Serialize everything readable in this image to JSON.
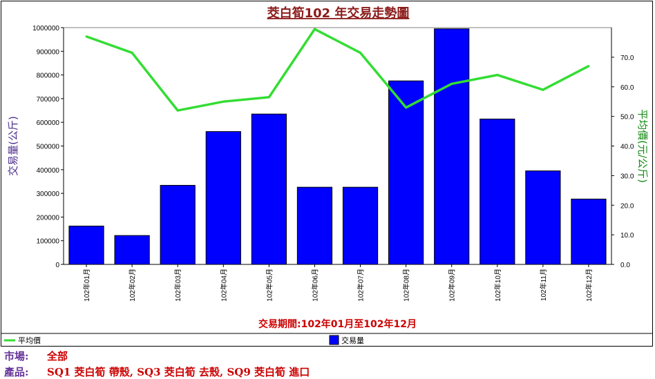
{
  "chart_data": {
    "type": "bar+line",
    "title": "茭白筍102 年交易走勢圖",
    "period_label": "交易期間:102年01月至102年12月",
    "categories": [
      "102年01月",
      "102年02月",
      "102年03月",
      "102年04月",
      "102年05月",
      "102年06月",
      "102年07月",
      "102年08月",
      "102年09月",
      "102年10月",
      "102年11月",
      "102年12月"
    ],
    "series": [
      {
        "name": "交易量",
        "kind": "bar",
        "axis": "left",
        "color": "#0000ff",
        "values": [
          162000,
          122000,
          334000,
          561000,
          635000,
          326000,
          326000,
          775000,
          995000,
          614000,
          395000,
          276000
        ]
      },
      {
        "name": "平均價",
        "kind": "line",
        "axis": "right",
        "color": "#33dd33",
        "values": [
          77.0,
          71.5,
          52.0,
          55.0,
          56.5,
          79.5,
          71.5,
          53.0,
          61.0,
          64.0,
          59.0,
          67.0
        ]
      }
    ],
    "ylabel_left": "交易量(公斤)",
    "ylabel_right": "平均價(元/公斤)",
    "ylim_left": [
      0,
      1000000
    ],
    "ylim_right": [
      0,
      80
    ],
    "yticks_left": [
      "0",
      "100000",
      "200000",
      "300000",
      "400000",
      "500000",
      "600000",
      "700000",
      "800000",
      "900000",
      "1000000"
    ],
    "yticks_right": [
      "0.0",
      "10.0",
      "20.0",
      "30.0",
      "40.0",
      "50.0",
      "60.0",
      "70.0"
    ],
    "legend": [
      {
        "label": "平均價",
        "type": "line"
      },
      {
        "label": "交易量",
        "type": "bar"
      }
    ],
    "legend_position": "bottom",
    "grid": false
  },
  "footer": {
    "market_label": "市場:",
    "market_value": "全部",
    "product_label": "產品:",
    "product_value": "SQ1 茭白筍 帶殼, SQ3 茭白筍 去殼, SQ9 茭白筍 進口"
  }
}
